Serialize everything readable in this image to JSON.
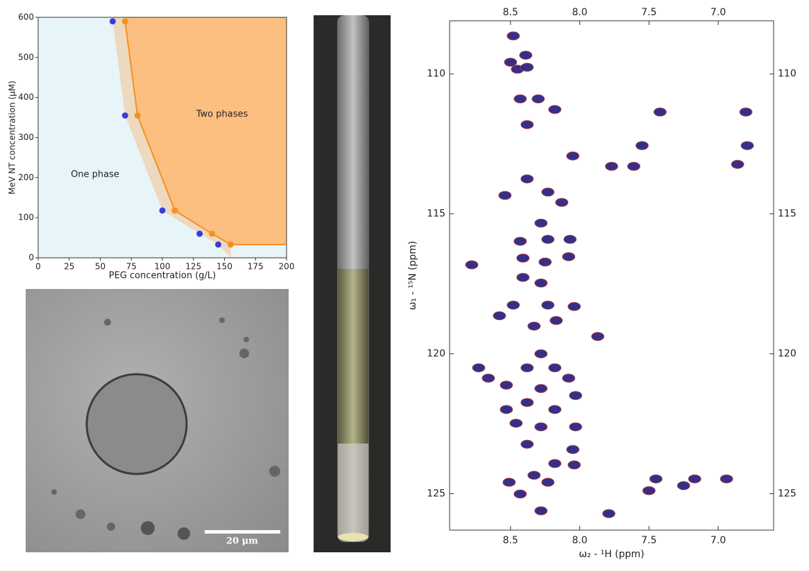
{
  "chart_data": [
    {
      "type": "scatter",
      "x_label": "PEG concentration (g/L)",
      "y_label": "MeV NT concentration (μM)",
      "annotations": [
        "One phase",
        "Two phases"
      ],
      "xlim": [
        0,
        200
      ],
      "xticks": [
        0,
        25,
        50,
        75,
        100,
        125,
        150,
        175,
        200
      ],
      "ylim": [
        0,
        600
      ],
      "yticks": [
        0,
        100,
        200,
        300,
        400,
        500,
        600
      ],
      "series": [
        {
          "color": "#3b3bdc",
          "x": [
            60,
            70,
            100,
            130,
            145
          ],
          "values": [
            590,
            355,
            118,
            60,
            33
          ]
        },
        {
          "color": "#f5901e",
          "x": [
            70,
            80,
            110,
            140,
            155
          ],
          "values": [
            590,
            355,
            118,
            60,
            33
          ]
        }
      ]
    },
    {
      "type": "scatter",
      "x_label": "ω₂ - ¹H  (ppm)",
      "y_label": "ω₁ - ¹⁵N  (ppm)",
      "xlim": [
        8.94,
        6.6
      ],
      "xticks": [
        8.5,
        {
          "value": 8,
          "label": "8.0"
        },
        7.5,
        {
          "value": 7,
          "label": "7.0"
        }
      ],
      "ylim": [
        108.1,
        126.3
      ],
      "yticks": [
        110,
        115,
        120,
        125
      ],
      "series": [
        {
          "color": "#1f1a7a",
          "x": [
            8.48,
            8.39,
            8.5,
            8.45,
            8.38,
            8.43,
            8.3,
            8.18,
            8.38,
            8.05,
            7.42,
            6.8,
            7.55,
            7.61,
            6.79,
            6.86,
            7.77,
            8.38,
            8.23,
            8.13,
            8.54,
            8.28,
            8.43,
            8.23,
            8.07,
            8.41,
            8.25,
            8.08,
            8.78,
            8.41,
            8.28,
            8.48,
            8.23,
            8.04,
            8.58,
            8.33,
            8.17,
            7.87,
            8.28,
            8.38,
            8.18,
            8.08,
            8.66,
            8.73,
            8.53,
            8.28,
            8.03,
            8.38,
            8.18,
            8.53,
            8.46,
            8.28,
            8.03,
            8.38,
            8.05,
            8.18,
            8.04,
            8.33,
            8.23,
            8.51,
            8.43,
            7.45,
            7.17,
            6.94,
            7.25,
            8.28,
            7.79,
            7.5
          ],
          "values": [
            108.64,
            109.33,
            109.58,
            109.83,
            109.76,
            110.89,
            110.89,
            111.27,
            111.81,
            112.93,
            111.36,
            111.36,
            112.56,
            113.3,
            112.56,
            113.23,
            113.3,
            113.75,
            114.22,
            114.59,
            114.34,
            115.33,
            115.98,
            115.91,
            115.91,
            116.58,
            116.72,
            116.53,
            116.82,
            117.27,
            117.47,
            118.26,
            118.26,
            118.31,
            118.64,
            119.01,
            118.81,
            119.38,
            120.0,
            120.5,
            120.5,
            120.87,
            120.87,
            120.5,
            121.12,
            121.24,
            121.49,
            121.74,
            121.99,
            121.99,
            122.48,
            122.61,
            122.61,
            123.23,
            123.42,
            123.92,
            123.97,
            124.34,
            124.59,
            124.59,
            125.01,
            124.47,
            124.47,
            124.47,
            124.71,
            125.61,
            125.71,
            124.89
          ]
        }
      ]
    }
  ],
  "micrograph": {
    "scale_bar": "20 μm"
  }
}
